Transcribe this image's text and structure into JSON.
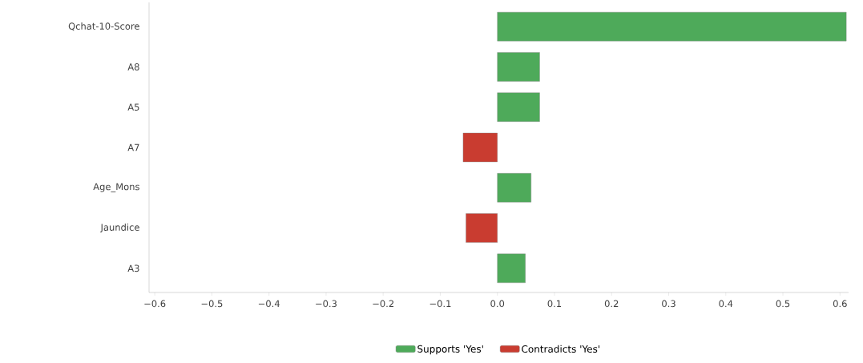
{
  "chart_data": {
    "type": "bar",
    "orientation": "horizontal",
    "categories": [
      "Qchat-10-Score",
      "A8",
      "A5",
      "A7",
      "Age_Mons",
      "Jaundice",
      "A3"
    ],
    "series": [
      {
        "name": "Supports 'Yes'",
        "color": "#4eaa5a",
        "values": [
          0.611,
          0.074,
          0.074,
          null,
          0.059,
          null,
          0.049
        ]
      },
      {
        "name": "Contradicts 'Yes'",
        "color": "#c93c30",
        "values": [
          null,
          null,
          null,
          -0.06,
          null,
          -0.055,
          null
        ]
      }
    ],
    "xlim": [
      -0.61,
      0.615
    ],
    "xticks": [
      {
        "value": -0.6,
        "label": "−0.6"
      },
      {
        "value": -0.5,
        "label": "−0.5"
      },
      {
        "value": -0.4,
        "label": "−0.4"
      },
      {
        "value": -0.3,
        "label": "−0.3"
      },
      {
        "value": -0.2,
        "label": "−0.2"
      },
      {
        "value": -0.1,
        "label": "−0.1"
      },
      {
        "value": 0,
        "label": "0.0"
      },
      {
        "value": 0.1,
        "label": "0.1"
      },
      {
        "value": 0.2,
        "label": "0.2"
      },
      {
        "value": 0.3,
        "label": "0.3"
      },
      {
        "value": 0.4,
        "label": "0.4"
      },
      {
        "value": 0.5,
        "label": "0.5"
      },
      {
        "value": 0.6,
        "label": "0.6"
      }
    ],
    "legend": "bottom",
    "grid": false
  }
}
